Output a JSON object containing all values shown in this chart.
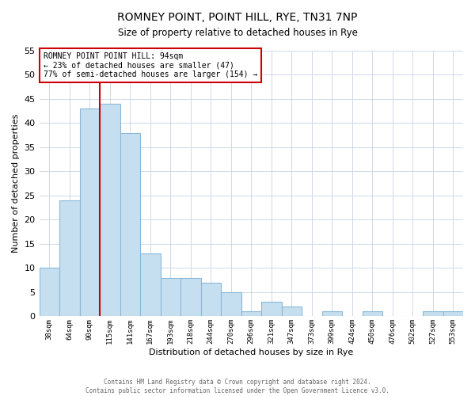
{
  "title": "ROMNEY POINT, POINT HILL, RYE, TN31 7NP",
  "subtitle": "Size of property relative to detached houses in Rye",
  "xlabel": "Distribution of detached houses by size in Rye",
  "ylabel": "Number of detached properties",
  "bar_labels": [
    "38sqm",
    "64sqm",
    "90sqm",
    "115sqm",
    "141sqm",
    "167sqm",
    "193sqm",
    "218sqm",
    "244sqm",
    "270sqm",
    "296sqm",
    "321sqm",
    "347sqm",
    "373sqm",
    "399sqm",
    "424sqm",
    "450sqm",
    "476sqm",
    "502sqm",
    "527sqm",
    "553sqm"
  ],
  "bar_values": [
    10,
    24,
    43,
    44,
    38,
    13,
    8,
    8,
    7,
    5,
    1,
    3,
    2,
    0,
    1,
    0,
    1,
    0,
    0,
    1,
    1
  ],
  "bar_color": "#c6dff0",
  "bar_edge_color": "#8ab8d8",
  "vline_x": 2.5,
  "marker_label_line1": "ROMNEY POINT POINT HILL: 94sqm",
  "marker_label_line2": "← 23% of detached houses are smaller (47)",
  "marker_label_line3": "77% of semi-detached houses are larger (154) →",
  "vline_color": "#cc0000",
  "ylim": [
    0,
    55
  ],
  "yticks": [
    0,
    5,
    10,
    15,
    20,
    25,
    30,
    35,
    40,
    45,
    50,
    55
  ],
  "footer1": "Contains HM Land Registry data © Crown copyright and database right 2024.",
  "footer2": "Contains public sector information licensed under the Open Government Licence v3.0.",
  "background_color": "#ffffff",
  "grid_color": "#d0d8e8"
}
